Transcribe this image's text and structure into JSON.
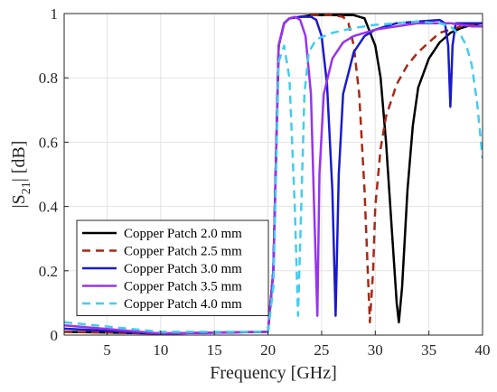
{
  "chart_data": {
    "type": "line",
    "title": "",
    "xlabel": "Frequency [GHz]",
    "ylabel_main": "|S",
    "ylabel_sub": "21",
    "ylabel_end": "| [dB]",
    "xlim": [
      1,
      40
    ],
    "ylim": [
      0,
      1
    ],
    "xticks": [
      5,
      10,
      15,
      20,
      25,
      30,
      35,
      40
    ],
    "yticks": [
      0,
      0.2,
      0.4,
      0.6,
      0.8,
      1
    ],
    "ytick_labels": [
      "0",
      "0.2",
      "0.4",
      "0.6",
      "0.8",
      "1"
    ],
    "grid": true,
    "legend_position": "bottom-left",
    "series": [
      {
        "name": "Copper Patch 2.0 mm",
        "color": "#000000",
        "dash": "solid",
        "x": [
          1,
          10,
          20,
          20.5,
          21,
          21.5,
          22,
          23,
          24,
          26,
          28,
          29,
          30,
          30.5,
          31,
          31.5,
          32,
          32.2,
          32.5,
          33,
          33.5,
          34,
          35,
          36,
          37,
          38,
          39,
          40
        ],
        "y": [
          0.01,
          0.005,
          0.01,
          0.2,
          0.9,
          0.97,
          0.985,
          0.99,
          0.995,
          0.995,
          0.995,
          0.985,
          0.9,
          0.8,
          0.6,
          0.35,
          0.1,
          0.04,
          0.15,
          0.45,
          0.65,
          0.77,
          0.86,
          0.91,
          0.94,
          0.955,
          0.965,
          0.97
        ]
      },
      {
        "name": "Copper Patch 2.5 mm",
        "color": "#a52a16",
        "dash": "dashed",
        "x": [
          1,
          10,
          20,
          20.5,
          21,
          21.5,
          22,
          23,
          24,
          25,
          26,
          27,
          27.5,
          28,
          28.5,
          29,
          29.3,
          29.5,
          29.8,
          30,
          30.5,
          31,
          32,
          33,
          34,
          35,
          36,
          37,
          38,
          39,
          40
        ],
        "y": [
          0.01,
          0.005,
          0.01,
          0.2,
          0.9,
          0.97,
          0.985,
          0.99,
          0.995,
          0.995,
          0.995,
          0.99,
          0.97,
          0.9,
          0.75,
          0.45,
          0.2,
          0.04,
          0.2,
          0.4,
          0.58,
          0.68,
          0.78,
          0.84,
          0.88,
          0.91,
          0.94,
          0.95,
          0.96,
          0.965,
          0.97
        ]
      },
      {
        "name": "Copper Patch 3.0 mm",
        "color": "#1a1acc",
        "dash": "solid",
        "x": [
          1,
          10,
          20,
          20.5,
          21,
          21.5,
          22,
          23,
          24,
          24.5,
          25,
          25.5,
          26,
          26.3,
          26.6,
          27,
          28,
          29,
          30,
          31,
          32,
          34,
          36,
          36.5,
          36.8,
          37,
          37.2,
          37.5,
          38,
          39,
          40
        ],
        "y": [
          0.02,
          0.005,
          0.01,
          0.2,
          0.9,
          0.97,
          0.985,
          0.99,
          0.99,
          0.98,
          0.93,
          0.78,
          0.45,
          0.06,
          0.5,
          0.75,
          0.88,
          0.93,
          0.95,
          0.96,
          0.97,
          0.975,
          0.98,
          0.97,
          0.9,
          0.71,
          0.9,
          0.97,
          0.97,
          0.97,
          0.97
        ]
      },
      {
        "name": "Copper Patch 3.5 mm",
        "color": "#9933ee",
        "dash": "solid",
        "x": [
          1,
          10,
          20,
          20.5,
          21,
          21.5,
          22,
          22.5,
          23,
          23.5,
          24,
          24.3,
          24.6,
          24.8,
          25.2,
          26,
          27,
          28,
          30,
          32,
          34,
          36,
          37,
          38,
          39,
          40
        ],
        "y": [
          0.03,
          0.005,
          0.01,
          0.2,
          0.9,
          0.97,
          0.985,
          0.99,
          0.98,
          0.93,
          0.75,
          0.4,
          0.06,
          0.5,
          0.75,
          0.86,
          0.91,
          0.93,
          0.95,
          0.96,
          0.97,
          0.97,
          0.97,
          0.965,
          0.96,
          0.96
        ]
      },
      {
        "name": "Copper Patch 4.0 mm",
        "color": "#44ccee",
        "dash": "dashed",
        "x": [
          1,
          10,
          20,
          20.5,
          21,
          21.5,
          22,
          22.5,
          22.8,
          23.1,
          23.4,
          23.8,
          24.5,
          26,
          28,
          30,
          32,
          34,
          36,
          37,
          38,
          38.5,
          39,
          39.5,
          40
        ],
        "y": [
          0.04,
          0.01,
          0.01,
          0.15,
          0.85,
          0.9,
          0.8,
          0.4,
          0.06,
          0.4,
          0.75,
          0.88,
          0.92,
          0.94,
          0.955,
          0.965,
          0.97,
          0.975,
          0.97,
          0.96,
          0.93,
          0.9,
          0.84,
          0.72,
          0.55
        ]
      }
    ]
  }
}
